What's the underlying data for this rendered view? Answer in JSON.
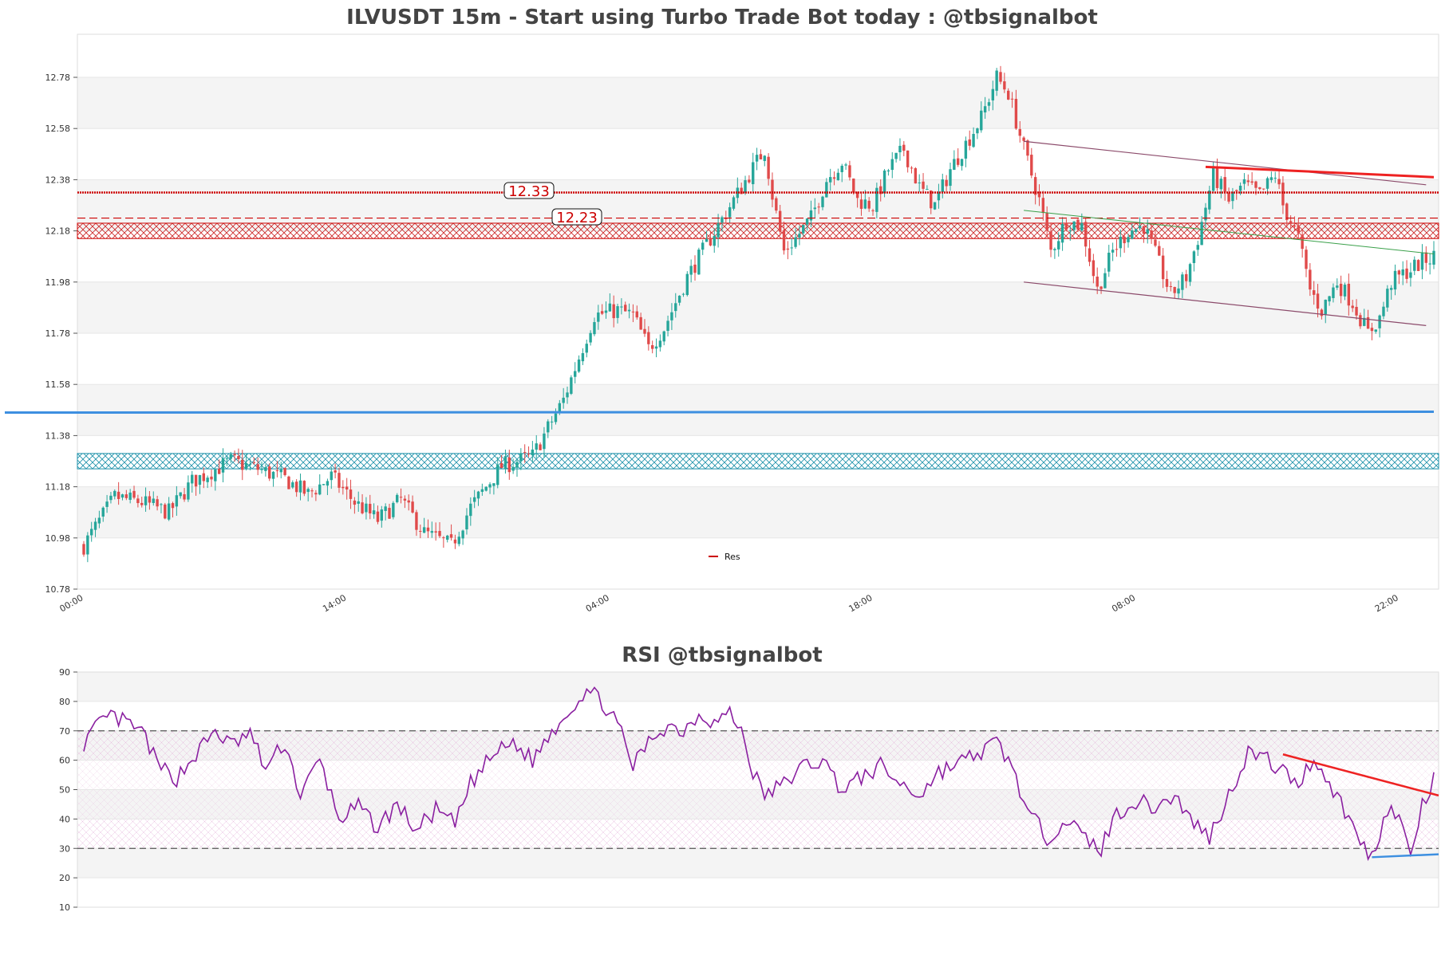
{
  "chart_data": [
    {
      "type": "candlestick",
      "title": "ILVUSDT 15m - Start using Turbo Trade Bot today : @tbsignalbot",
      "ylim": [
        10.78,
        12.95
      ],
      "y_ticks": [
        "12.78",
        "12.58",
        "12.38",
        "12.18",
        "11.98",
        "11.78",
        "11.58",
        "11.38",
        "11.18",
        "10.98",
        "10.78"
      ],
      "x_ticks": [
        "00:00",
        "14:00",
        "04:00",
        "18:00",
        "08:00",
        "22:00"
      ],
      "legend": {
        "entries": [
          "Res"
        ],
        "placement": "bottom-center"
      },
      "levels": {
        "resistance_main": {
          "value": 12.33,
          "label": "12.33"
        },
        "resistance_2": {
          "value": 12.23,
          "label": "12.23"
        },
        "support_blue": {
          "value": 11.47
        }
      },
      "zones": {
        "resistance_zone": [
          12.15,
          12.21
        ],
        "support_zone": [
          11.25,
          11.31
        ]
      },
      "anchors": [
        [
          0,
          10.95
        ],
        [
          8,
          11.14
        ],
        [
          15,
          11.12
        ],
        [
          22,
          11.08
        ],
        [
          28,
          11.2
        ],
        [
          38,
          11.28
        ],
        [
          45,
          11.25
        ],
        [
          52,
          11.21
        ],
        [
          58,
          11.15
        ],
        [
          64,
          11.22
        ],
        [
          70,
          11.12
        ],
        [
          76,
          11.05
        ],
        [
          82,
          11.13
        ],
        [
          88,
          11.0
        ],
        [
          95,
          10.95
        ],
        [
          100,
          11.1
        ],
        [
          108,
          11.26
        ],
        [
          116,
          11.3
        ],
        [
          124,
          11.52
        ],
        [
          132,
          11.85
        ],
        [
          138,
          11.87
        ],
        [
          142,
          11.85
        ],
        [
          146,
          11.72
        ],
        [
          150,
          11.8
        ],
        [
          156,
          12.0
        ],
        [
          162,
          12.15
        ],
        [
          168,
          12.3
        ],
        [
          172,
          12.4
        ],
        [
          176,
          12.5
        ],
        [
          178,
          12.32
        ],
        [
          181,
          12.1
        ],
        [
          184,
          12.15
        ],
        [
          188,
          12.23
        ],
        [
          192,
          12.38
        ],
        [
          196,
          12.45
        ],
        [
          200,
          12.3
        ],
        [
          204,
          12.28
        ],
        [
          208,
          12.42
        ],
        [
          212,
          12.5
        ],
        [
          216,
          12.35
        ],
        [
          220,
          12.28
        ],
        [
          224,
          12.42
        ],
        [
          228,
          12.52
        ],
        [
          232,
          12.62
        ],
        [
          236,
          12.78
        ],
        [
          239,
          12.72
        ],
        [
          243,
          12.5
        ],
        [
          247,
          12.3
        ],
        [
          250,
          12.1
        ],
        [
          254,
          12.22
        ],
        [
          258,
          12.2
        ],
        [
          262,
          11.95
        ],
        [
          266,
          12.1
        ],
        [
          270,
          12.18
        ],
        [
          274,
          12.2
        ],
        [
          278,
          12.05
        ],
        [
          281,
          11.93
        ],
        [
          285,
          12.0
        ],
        [
          288,
          12.15
        ],
        [
          292,
          12.4
        ],
        [
          296,
          12.3
        ],
        [
          300,
          12.36
        ],
        [
          304,
          12.32
        ],
        [
          308,
          12.4
        ],
        [
          310,
          12.28
        ],
        [
          314,
          12.15
        ],
        [
          317,
          11.95
        ],
        [
          320,
          11.87
        ],
        [
          324,
          11.98
        ],
        [
          328,
          11.9
        ],
        [
          332,
          11.78
        ],
        [
          335,
          11.84
        ],
        [
          338,
          11.98
        ],
        [
          342,
          12.02
        ],
        [
          346,
          12.06
        ],
        [
          349,
          12.08
        ]
      ]
    },
    {
      "type": "line",
      "title": "RSI @tbsignalbot",
      "ylim": [
        10,
        90
      ],
      "y_ticks": [
        "90",
        "80",
        "70",
        "60",
        "50",
        "40",
        "30",
        "20",
        "10"
      ],
      "reference_lines": [
        70,
        30
      ],
      "bands": {
        "overbought": [
          60,
          70
        ],
        "oversold": [
          30,
          40
        ]
      },
      "anchors": [
        [
          0,
          66
        ],
        [
          4,
          72
        ],
        [
          7,
          75
        ],
        [
          12,
          72
        ],
        [
          16,
          68
        ],
        [
          19,
          58
        ],
        [
          24,
          54
        ],
        [
          29,
          62
        ],
        [
          34,
          70
        ],
        [
          38,
          65
        ],
        [
          43,
          69
        ],
        [
          47,
          57
        ],
        [
          52,
          66
        ],
        [
          56,
          48
        ],
        [
          61,
          60
        ],
        [
          66,
          40
        ],
        [
          71,
          44
        ],
        [
          76,
          37
        ],
        [
          81,
          45
        ],
        [
          86,
          36
        ],
        [
          91,
          43
        ],
        [
          96,
          38
        ],
        [
          100,
          52
        ],
        [
          106,
          62
        ],
        [
          111,
          66
        ],
        [
          116,
          60
        ],
        [
          121,
          70
        ],
        [
          126,
          78
        ],
        [
          130,
          84
        ],
        [
          134,
          80
        ],
        [
          138,
          72
        ],
        [
          142,
          58
        ],
        [
          147,
          68
        ],
        [
          151,
          72
        ],
        [
          155,
          70
        ],
        [
          159,
          76
        ],
        [
          163,
          73
        ],
        [
          167,
          76
        ],
        [
          170,
          70
        ],
        [
          173,
          56
        ],
        [
          176,
          48
        ],
        [
          181,
          52
        ],
        [
          186,
          58
        ],
        [
          191,
          60
        ],
        [
          196,
          50
        ],
        [
          201,
          54
        ],
        [
          206,
          58
        ],
        [
          211,
          52
        ],
        [
          216,
          48
        ],
        [
          221,
          56
        ],
        [
          226,
          59
        ],
        [
          231,
          62
        ],
        [
          236,
          66
        ],
        [
          240,
          58
        ],
        [
          244,
          42
        ],
        [
          249,
          34
        ],
        [
          254,
          40
        ],
        [
          259,
          33
        ],
        [
          263,
          30
        ],
        [
          267,
          42
        ],
        [
          272,
          46
        ],
        [
          277,
          44
        ],
        [
          282,
          48
        ],
        [
          286,
          40
        ],
        [
          291,
          34
        ],
        [
          296,
          48
        ],
        [
          301,
          63
        ],
        [
          306,
          60
        ],
        [
          310,
          56
        ],
        [
          314,
          52
        ],
        [
          318,
          61
        ],
        [
          322,
          52
        ],
        [
          326,
          43
        ],
        [
          330,
          32
        ],
        [
          333,
          27
        ],
        [
          337,
          44
        ],
        [
          340,
          40
        ],
        [
          343,
          28
        ],
        [
          346,
          44
        ],
        [
          349,
          53
        ]
      ]
    }
  ],
  "colors": {
    "up": "#26a69a",
    "down": "#e04a4a",
    "resistance": "#cc0000",
    "support_line": "#3d8fe0",
    "support_zone": "#1a8fa8",
    "rsi_line": "#8a1fa0",
    "rsi_trend_down": "#ee2222",
    "rsi_trend_flat": "#3d8fe0",
    "channel": "#8b4a6a",
    "channel_mid": "#3aa04a",
    "trend_top": "#ee2222"
  }
}
